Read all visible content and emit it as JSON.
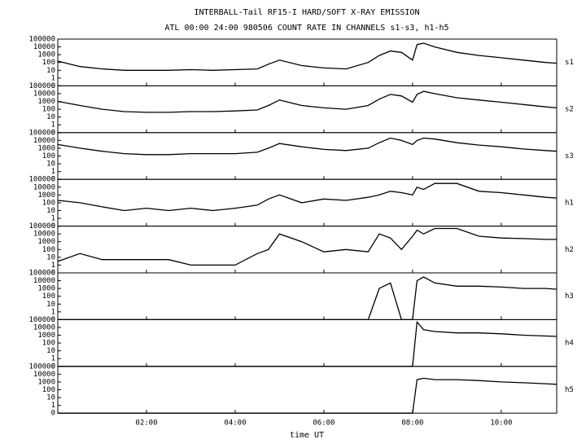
{
  "title": "INTERBALL-Tail RF15-I HARD/SOFT X-RAY EMISSION",
  "subtitle": "ATL 00:00 24:00 980506  COUNT RATE IN CHANNELS s1-s3, h1-h5",
  "x_label": "time UT",
  "xlim": [
    0,
    11.25
  ],
  "xticks": [
    {
      "value": 2,
      "label": "02:00"
    },
    {
      "value": 4,
      "label": "04:00"
    },
    {
      "value": 6,
      "label": "06:00"
    },
    {
      "value": 8,
      "label": "08:00"
    },
    {
      "value": 10,
      "label": "10:00"
    }
  ],
  "chart_data": [
    {
      "type": "line",
      "name": "s1",
      "log": true,
      "color": "#000000",
      "ylim": [
        0.1,
        100000
      ],
      "yticks": [
        {
          "value": 0.1,
          "label": "0"
        },
        1,
        10,
        100,
        1000,
        10000,
        100000
      ],
      "x": [
        0,
        0.5,
        1,
        1.5,
        2,
        2.5,
        3,
        3.5,
        4,
        4.5,
        4.75,
        5,
        5.5,
        6,
        6.5,
        7,
        7.25,
        7.5,
        7.75,
        8,
        8.1,
        8.25,
        8.5,
        9,
        9.5,
        10,
        10.5,
        11,
        11.25
      ],
      "values": [
        150,
        30,
        15,
        10,
        10,
        10,
        12,
        10,
        12,
        15,
        60,
        200,
        40,
        20,
        15,
        100,
        800,
        3000,
        2000,
        200,
        20000,
        30000,
        10000,
        2000,
        800,
        400,
        200,
        100,
        80
      ]
    },
    {
      "type": "line",
      "name": "s2",
      "log": true,
      "color": "#000000",
      "ylim": [
        0.1,
        100000
      ],
      "yticks": [
        {
          "value": 0.1,
          "label": "0"
        },
        1,
        10,
        100,
        1000,
        10000,
        100000
      ],
      "x": [
        0,
        0.5,
        1,
        1.5,
        2,
        2.5,
        3,
        3.5,
        4,
        4.5,
        4.75,
        5,
        5.5,
        6,
        6.5,
        7,
        7.25,
        7.5,
        7.75,
        8,
        8.1,
        8.25,
        8.5,
        9,
        9.5,
        10,
        10.5,
        11,
        11.25
      ],
      "values": [
        1000,
        300,
        100,
        50,
        40,
        40,
        50,
        50,
        60,
        80,
        300,
        1500,
        300,
        150,
        100,
        300,
        2000,
        8000,
        5000,
        800,
        8000,
        20000,
        10000,
        3000,
        1500,
        800,
        400,
        200,
        150
      ]
    },
    {
      "type": "line",
      "name": "s3",
      "log": true,
      "color": "#000000",
      "ylim": [
        0.1,
        100000
      ],
      "yticks": [
        {
          "value": 0.1,
          "label": "0"
        },
        1,
        10,
        100,
        1000,
        10000,
        100000
      ],
      "x": [
        0,
        0.5,
        1,
        1.5,
        2,
        2.5,
        3,
        3.5,
        4,
        4.5,
        4.75,
        5,
        5.5,
        6,
        6.5,
        7,
        7.25,
        7.5,
        7.75,
        8,
        8.1,
        8.25,
        8.5,
        9,
        9.5,
        10,
        10.5,
        11,
        11.25
      ],
      "values": [
        3000,
        1000,
        400,
        200,
        150,
        150,
        200,
        200,
        200,
        300,
        1000,
        4000,
        1500,
        700,
        500,
        1000,
        5000,
        20000,
        10000,
        3000,
        10000,
        20000,
        15000,
        5000,
        2500,
        1500,
        800,
        500,
        400
      ]
    },
    {
      "type": "line",
      "name": "h1",
      "log": true,
      "color": "#000000",
      "ylim": [
        0.1,
        100000
      ],
      "yticks": [
        {
          "value": 0.1,
          "label": "0"
        },
        1,
        10,
        100,
        1000,
        10000,
        100000
      ],
      "x": [
        0,
        0.5,
        1,
        1.5,
        2,
        2.5,
        3,
        3.5,
        4,
        4.5,
        4.75,
        5,
        5.5,
        6,
        6.5,
        7,
        7.25,
        7.5,
        7.75,
        8,
        8.1,
        8.25,
        8.5,
        9,
        9.5,
        10,
        10.5,
        11,
        11.25
      ],
      "values": [
        200,
        100,
        30,
        10,
        20,
        10,
        20,
        10,
        20,
        50,
        300,
        1000,
        100,
        300,
        200,
        500,
        1000,
        3000,
        2000,
        1000,
        10000,
        5000,
        30000,
        30000,
        3000,
        2000,
        1000,
        500,
        400
      ]
    },
    {
      "type": "line",
      "name": "h2",
      "log": true,
      "color": "#000000",
      "ylim": [
        0.1,
        100000
      ],
      "yticks": [
        {
          "value": 0.1,
          "label": "0"
        },
        1,
        10,
        100,
        1000,
        10000,
        100000
      ],
      "x": [
        0,
        0.5,
        1,
        1.5,
        2,
        2.5,
        3,
        3.5,
        4,
        4.5,
        4.75,
        5,
        5.5,
        6,
        6.5,
        7,
        7.25,
        7.5,
        7.75,
        8,
        8.1,
        8.25,
        8.5,
        9,
        9.5,
        10,
        10.5,
        11,
        11.25
      ],
      "values": [
        3,
        30,
        5,
        5,
        5,
        5,
        1,
        1,
        1,
        30,
        100,
        10000,
        1000,
        50,
        100,
        50,
        10000,
        3000,
        100,
        5000,
        30000,
        10000,
        50000,
        50000,
        5000,
        3000,
        2500,
        2000,
        2000
      ]
    },
    {
      "type": "line",
      "name": "h3",
      "log": true,
      "color": "#000000",
      "ylim": [
        0.1,
        100000
      ],
      "yticks": [
        {
          "value": 0.1,
          "label": "0"
        },
        1,
        10,
        100,
        1000,
        10000,
        100000
      ],
      "x": [
        0,
        0.5,
        1,
        1.5,
        2,
        2.5,
        3,
        3.5,
        4,
        4.5,
        4.75,
        5,
        5.5,
        6,
        6.5,
        7,
        7.25,
        7.5,
        7.75,
        8,
        8.1,
        8.25,
        8.5,
        9,
        9.5,
        10,
        10.5,
        11,
        11.25
      ],
      "values": [
        0.1,
        0.1,
        0.1,
        0.1,
        0.1,
        0.1,
        0.1,
        0.1,
        0.1,
        0.1,
        0.1,
        0.1,
        0.1,
        0.1,
        0.1,
        0.1,
        1000,
        5000,
        0.1,
        0.1,
        10000,
        30000,
        5000,
        2000,
        2000,
        1500,
        1000,
        1000,
        800
      ]
    },
    {
      "type": "line",
      "name": "h4",
      "log": true,
      "color": "#000000",
      "ylim": [
        0.1,
        100000
      ],
      "yticks": [
        {
          "value": 0.1,
          "label": "0"
        },
        1,
        10,
        100,
        1000,
        10000,
        100000
      ],
      "x": [
        0,
        0.5,
        1,
        1.5,
        2,
        2.5,
        3,
        3.5,
        4,
        4.5,
        4.75,
        5,
        5.5,
        6,
        6.5,
        7,
        7.25,
        7.5,
        7.75,
        8,
        8.1,
        8.25,
        8.5,
        9,
        9.5,
        10,
        10.5,
        11,
        11.25
      ],
      "values": [
        0.1,
        0.1,
        0.1,
        0.1,
        0.1,
        0.1,
        0.1,
        0.1,
        0.1,
        0.1,
        0.1,
        0.1,
        0.1,
        0.1,
        0.1,
        0.1,
        0.1,
        0.1,
        0.1,
        0.1,
        50000,
        5000,
        3000,
        2000,
        2000,
        1500,
        1000,
        800,
        700
      ]
    },
    {
      "type": "line",
      "name": "h5",
      "log": true,
      "color": "#000000",
      "ylim": [
        0.1,
        100000
      ],
      "yticks": [
        {
          "value": 0.1,
          "label": "0"
        },
        1,
        10,
        100,
        1000,
        10000,
        100000
      ],
      "x": [
        0,
        0.5,
        1,
        1.5,
        2,
        2.5,
        3,
        3.5,
        4,
        4.5,
        4.75,
        5,
        5.5,
        6,
        6.5,
        7,
        7.25,
        7.5,
        7.75,
        8,
        8.1,
        8.25,
        8.5,
        9,
        9.5,
        10,
        10.5,
        11,
        11.25
      ],
      "values": [
        0.1,
        0.1,
        0.1,
        0.1,
        0.1,
        0.1,
        0.1,
        0.1,
        0.1,
        0.1,
        0.1,
        0.1,
        0.1,
        0.1,
        0.1,
        0.1,
        0.1,
        0.1,
        0.1,
        0.1,
        2000,
        3000,
        2000,
        2000,
        1500,
        1000,
        800,
        600,
        500
      ]
    }
  ]
}
